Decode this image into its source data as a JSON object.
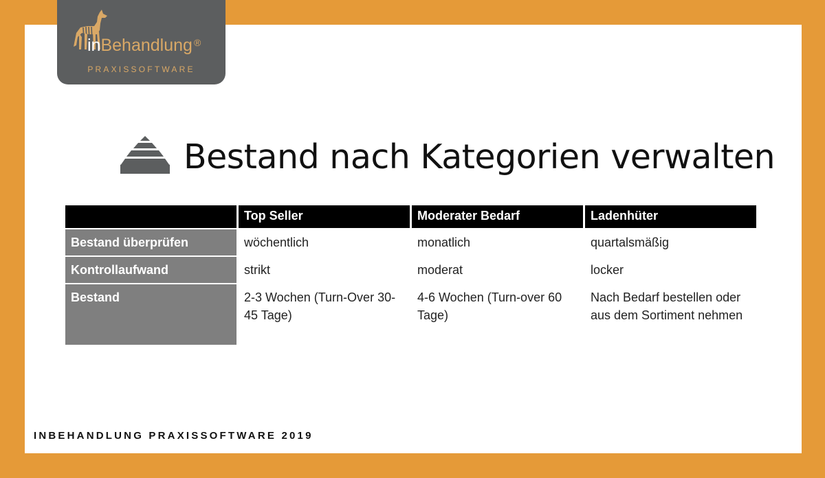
{
  "logo": {
    "brand_prefix": "in",
    "brand_name": "Behandlung",
    "registered": "®",
    "subtitle": "PRAXISSOFTWARE",
    "icon": "dog-logo-icon"
  },
  "slide": {
    "title_icon": "pyramid-icon",
    "title": "Bestand nach Kategorien verwalten"
  },
  "table": {
    "headers": [
      "",
      "Top Seller",
      "Moderater Bedarf",
      "Ladenhüter"
    ],
    "rows": [
      {
        "label": "Bestand überprüfen",
        "cells": [
          "wöchentlich",
          "monatlich",
          "quartalsmäßig"
        ]
      },
      {
        "label": "Kontrollaufwand",
        "cells": [
          "strikt",
          "moderat",
          "locker"
        ]
      },
      {
        "label": "Bestand",
        "cells": [
          "2-3 Wochen (Turn-Over 30-45 Tage)",
          "4-6 Wochen (Turn-over 60 Tage)",
          "Nach Bedarf bestellen oder aus dem Sortiment nehmen"
        ]
      }
    ]
  },
  "footer": "INBEHANDLUNG PRAXISSOFTWARE 2019",
  "colors": {
    "frame": "#e59a38",
    "logo_bg": "#5c5e5f",
    "logo_accent": "#d9a866",
    "header_bg": "#000000",
    "rowhead_bg": "#7f7f7f"
  }
}
